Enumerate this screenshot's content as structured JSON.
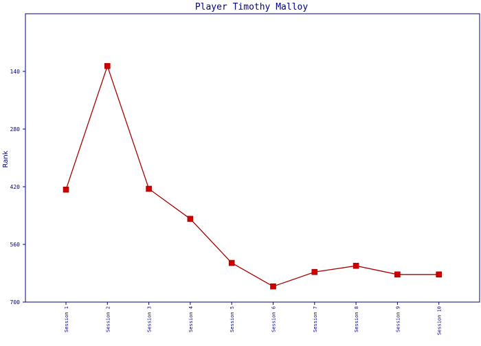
{
  "chart_data": {
    "type": "line",
    "title": "Player Timothy Malloy",
    "xlabel": "",
    "ylabel": "Rank",
    "y_inverted": true,
    "ylim": [
      0,
      700
    ],
    "yticks": [
      140,
      280,
      420,
      560,
      700
    ],
    "grid": false,
    "legend": "none",
    "categories": [
      "Session 1",
      "Session 2",
      "Session 3",
      "Session 4",
      "Session 5",
      "Session 6",
      "Session 7",
      "Session 8",
      "Session 9",
      "Session 10"
    ],
    "series": [
      {
        "values": [
          427,
          127,
          425,
          498,
          605,
          662,
          627,
          612,
          633,
          633
        ]
      }
    ],
    "colors": {
      "line": "#aa0000",
      "marker": "#cc0000",
      "axis": "#000080",
      "text": "#000080"
    }
  }
}
